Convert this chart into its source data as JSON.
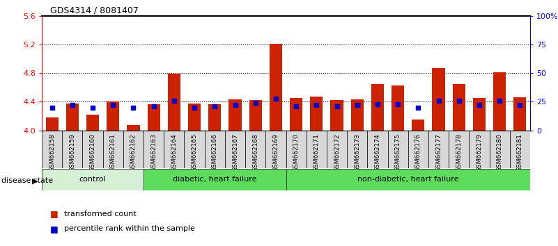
{
  "title": "GDS4314 / 8081407",
  "samples": [
    "GSM662158",
    "GSM662159",
    "GSM662160",
    "GSM662161",
    "GSM662162",
    "GSM662163",
    "GSM662164",
    "GSM662165",
    "GSM662166",
    "GSM662167",
    "GSM662168",
    "GSM662169",
    "GSM662170",
    "GSM662171",
    "GSM662172",
    "GSM662173",
    "GSM662174",
    "GSM662175",
    "GSM662176",
    "GSM662177",
    "GSM662178",
    "GSM662179",
    "GSM662180",
    "GSM662181"
  ],
  "transformed_count": [
    4.18,
    4.38,
    4.22,
    4.4,
    4.07,
    4.37,
    4.79,
    4.38,
    4.37,
    4.43,
    4.42,
    5.21,
    4.45,
    4.47,
    4.42,
    4.43,
    4.65,
    4.63,
    4.15,
    4.87,
    4.65,
    4.45,
    4.81,
    4.46
  ],
  "percentile_rank": [
    20,
    22,
    20,
    22,
    20,
    21,
    26,
    20,
    21,
    22,
    24,
    28,
    21,
    22,
    21,
    22,
    23,
    23,
    20,
    26,
    26,
    22,
    26,
    22
  ],
  "bar_color": "#cc2200",
  "blue_color": "#0000cc",
  "ylim_left": [
    4.0,
    5.6
  ],
  "yticks_left": [
    4.0,
    4.4,
    4.8,
    5.2,
    5.6
  ],
  "ytick_labels_right": [
    "0",
    "25",
    "50",
    "75",
    "100%"
  ],
  "yticks_right": [
    0,
    25,
    50,
    75,
    100
  ],
  "group_configs": [
    {
      "start": 0,
      "end": 4,
      "color": "#d5f0d5",
      "label": "control"
    },
    {
      "start": 5,
      "end": 11,
      "color": "#5cdd5c",
      "label": "diabetic, heart failure"
    },
    {
      "start": 12,
      "end": 23,
      "color": "#5cdd5c",
      "label": "non-diabetic, heart failure"
    }
  ],
  "disease_state_label": "disease state",
  "legend_items": [
    {
      "label": "transformed count",
      "color": "#cc2200"
    },
    {
      "label": "percentile rank within the sample",
      "color": "#0000cc"
    }
  ]
}
